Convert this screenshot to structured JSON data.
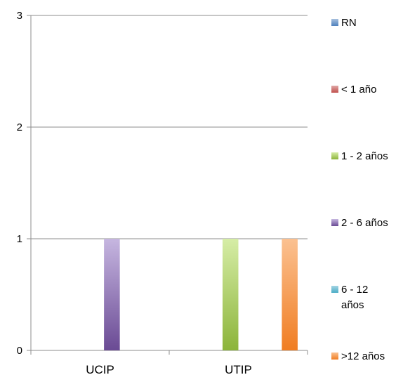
{
  "chart_data": {
    "type": "bar",
    "categories": [
      "UCIP",
      "UTIP"
    ],
    "series": [
      {
        "name": "RN",
        "values": [
          0,
          0
        ],
        "color": "#4f81bd",
        "color_light": "#a7c0de"
      },
      {
        "name": "< 1 año",
        "values": [
          0,
          0
        ],
        "color": "#c0504d",
        "color_light": "#e0a8a6"
      },
      {
        "name": "1 - 2 años",
        "values": [
          0,
          1
        ],
        "color": "#8cb43a",
        "color_light": "#d6eda6"
      },
      {
        "name": "2 - 6 años",
        "values": [
          1,
          0
        ],
        "color": "#6a4a94",
        "color_light": "#c6b6e0"
      },
      {
        "name": "6 - 12 años",
        "values": [
          0,
          0
        ],
        "color": "#4bacc6",
        "color_light": "#a5d5e3"
      },
      {
        "name": ">12 años",
        "values": [
          0,
          1
        ],
        "color": "#f07d22",
        "color_light": "#fbc191"
      }
    ],
    "yticks": [
      "0",
      "1",
      "2",
      "3"
    ],
    "ylim": [
      0,
      3
    ],
    "grid": true,
    "legend_placement": "right"
  }
}
